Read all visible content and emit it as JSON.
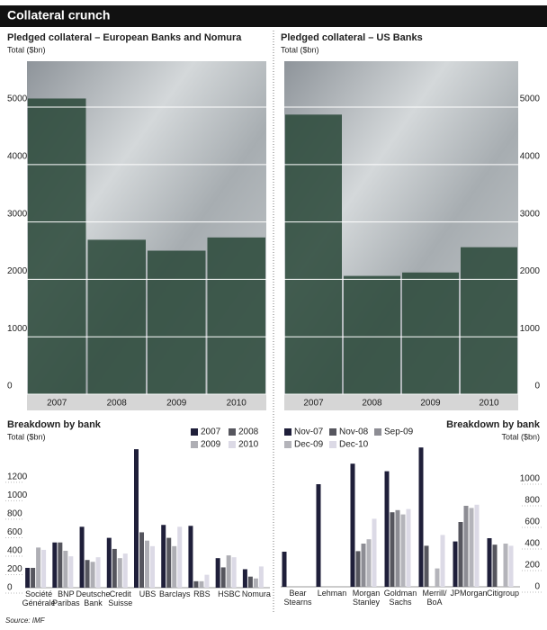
{
  "title": "Collateral crunch",
  "source": "Source: IMF",
  "chart_data": [
    {
      "type": "bar",
      "title": "Pledged collateral – European Banks and Nomura",
      "subtitle": "Total ($bn)",
      "categories": [
        "2007",
        "2008",
        "2009",
        "2010"
      ],
      "values": [
        5150,
        2690,
        2500,
        2730
      ],
      "color": "#2c4a3b",
      "ylim": [
        0,
        5800
      ],
      "yticks": [
        0,
        1000,
        2000,
        3000,
        4000,
        5000
      ],
      "grid": true,
      "tick_side": "left"
    },
    {
      "type": "bar",
      "title": "Pledged collateral – US Banks",
      "subtitle": "Total ($bn)",
      "categories": [
        "2007",
        "2008",
        "2009",
        "2010"
      ],
      "values": [
        4870,
        2060,
        2120,
        2560
      ],
      "color": "#2c4a3b",
      "ylim": [
        0,
        5800
      ],
      "yticks": [
        0,
        1000,
        2000,
        3000,
        4000,
        5000
      ],
      "grid": true,
      "tick_side": "right"
    },
    {
      "type": "grouped_bar",
      "title": "Breakdown by bank",
      "subtitle": "Total ($bn)",
      "categories": [
        "Société Générale",
        "BNP Paribas",
        "Deutsche Bank",
        "Credit Suisse",
        "UBS",
        "Barclays",
        "RBS",
        "HSBC",
        "Nomura"
      ],
      "series": [
        {
          "name": "2007",
          "color": "#1f1f3a",
          "values": [
            215,
            490,
            660,
            540,
            1500,
            680,
            670,
            320,
            200
          ]
        },
        {
          "name": "2008",
          "color": "#56565e",
          "values": [
            215,
            490,
            300,
            420,
            600,
            540,
            70,
            220,
            120
          ]
        },
        {
          "name": "2009",
          "color": "#aeaeb4",
          "values": [
            435,
            400,
            280,
            320,
            510,
            450,
            70,
            350,
            100
          ]
        },
        {
          "name": "2010",
          "color": "#dcdae6",
          "values": [
            410,
            340,
            330,
            370,
            450,
            660,
            140,
            330,
            230
          ]
        }
      ],
      "ylim": [
        0,
        1550
      ],
      "yticks": [
        0,
        200,
        400,
        600,
        800,
        1000,
        1200
      ],
      "tick_side": "left"
    },
    {
      "type": "grouped_bar",
      "title": "Breakdown by bank",
      "subtitle": "Total ($bn)",
      "categories": [
        "Bear Stearns",
        "Lehman",
        "Morgan Stanley",
        "Goldman Sachs",
        "Merrill/ BoA",
        "JPMorgan",
        "Citigroup"
      ],
      "series": [
        {
          "name": "Nov-07",
          "color": "#1f1f3a",
          "values": [
            325,
            950,
            1140,
            1070,
            1290,
            420,
            450
          ]
        },
        {
          "name": "Nov-08",
          "color": "#56565e",
          "values": [
            null,
            null,
            330,
            690,
            380,
            600,
            390
          ]
        },
        {
          "name": "Sep-09",
          "color": "#8d8d94",
          "values": [
            null,
            null,
            400,
            710,
            null,
            750,
            null
          ]
        },
        {
          "name": "Dec-09",
          "color": "#b4b4ba",
          "values": [
            null,
            null,
            440,
            670,
            170,
            730,
            400
          ]
        },
        {
          "name": "Dec-10",
          "color": "#dcdae6",
          "values": [
            null,
            null,
            630,
            720,
            480,
            760,
            380
          ]
        }
      ],
      "ylim": [
        0,
        1300
      ],
      "yticks": [
        0,
        200,
        400,
        600,
        800,
        1000
      ],
      "tick_side": "right"
    }
  ]
}
